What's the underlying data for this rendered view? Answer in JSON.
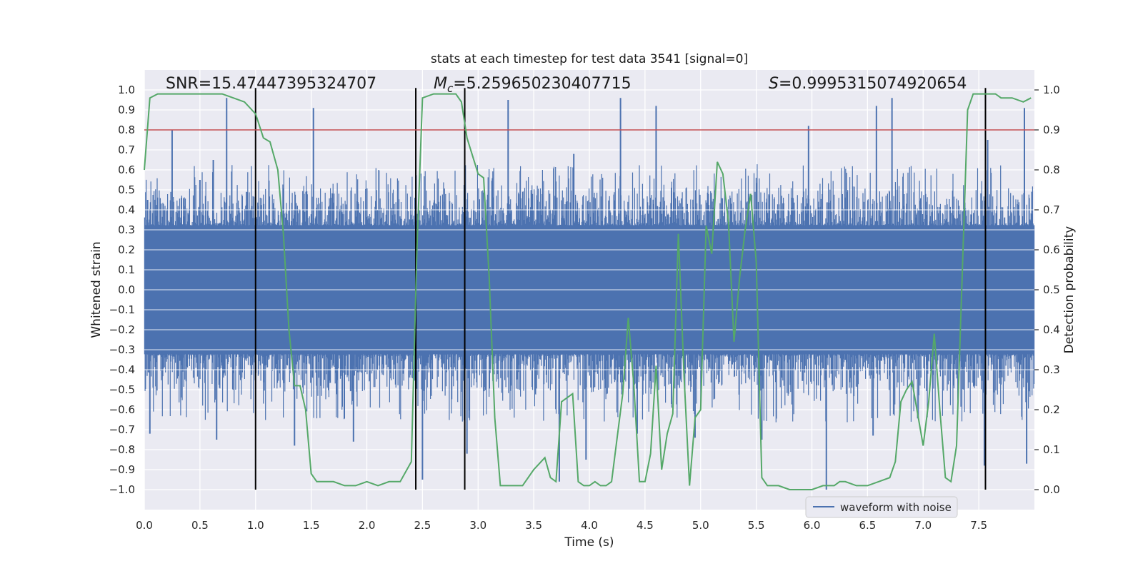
{
  "chart_data": {
    "type": "line",
    "title": "stats at each timestep for test data 3541 [signal=0]",
    "xlabel": "Time (s)",
    "ylabel": "Whitened strain",
    "ylabel_right": "Detection probability",
    "xlim": [
      0.0,
      8.0
    ],
    "ylim": [
      -1.1,
      1.1
    ],
    "ylim_right": [
      -0.05,
      1.05
    ],
    "x_ticks": [
      "0.0",
      "0.5",
      "1.0",
      "1.5",
      "2.0",
      "2.5",
      "3.0",
      "3.5",
      "4.0",
      "4.5",
      "5.0",
      "5.5",
      "6.0",
      "6.5",
      "7.0",
      "7.5"
    ],
    "y_ticks": [
      "1.0",
      "0.9",
      "0.8",
      "0.7",
      "0.6",
      "0.5",
      "0.4",
      "0.3",
      "0.2",
      "0.1",
      "0.0",
      "−0.1",
      "−0.2",
      "−0.3",
      "−0.4",
      "−0.5",
      "−0.6",
      "−0.7",
      "−0.8",
      "−0.9",
      "−1.0"
    ],
    "y_right_ticks": [
      "1.0",
      "0.9",
      "0.8",
      "0.7",
      "0.6",
      "0.5",
      "0.4",
      "0.3",
      "0.2",
      "0.1",
      "0.0"
    ],
    "grid": true,
    "annotations": {
      "snr": "SNR=15.47447395324707",
      "mc_symbol": "M",
      "mc_sub": "c",
      "mc_value": "=5.259650230407715",
      "s_symbol": "S",
      "s_value": "=0.9995315074920654"
    },
    "threshold_right": 0.9,
    "vertical_lines": [
      1.0,
      2.44,
      2.88,
      7.56
    ],
    "legend": {
      "label": "waveform with noise",
      "location": "lower right"
    },
    "series": [
      {
        "name": "waveform with noise",
        "axis": "left",
        "color": "#4c72b0",
        "kind": "noise",
        "typical_amplitude": 0.34,
        "positive_peaks": [
          [
            0.03,
            0.45
          ],
          [
            0.25,
            0.8
          ],
          [
            0.5,
            0.55
          ],
          [
            0.62,
            0.65
          ],
          [
            0.74,
            0.96
          ],
          [
            1.52,
            0.91
          ],
          [
            3.27,
            0.95
          ],
          [
            3.86,
            0.68
          ],
          [
            4.28,
            0.96
          ],
          [
            4.6,
            0.92
          ],
          [
            5.97,
            0.82
          ],
          [
            6.58,
            0.92
          ],
          [
            6.72,
            0.96
          ],
          [
            7.58,
            0.75
          ],
          [
            7.91,
            0.91
          ]
        ],
        "negative_peaks": [
          [
            0.05,
            -0.72
          ],
          [
            0.65,
            -0.75
          ],
          [
            1.35,
            -0.78
          ],
          [
            1.88,
            -0.76
          ],
          [
            2.5,
            -0.95
          ],
          [
            2.9,
            -0.82
          ],
          [
            3.73,
            -0.96
          ],
          [
            3.97,
            -0.85
          ],
          [
            4.43,
            -0.72
          ],
          [
            4.95,
            -0.74
          ],
          [
            5.55,
            -0.75
          ],
          [
            6.13,
            -1.0
          ],
          [
            6.55,
            -0.73
          ],
          [
            7.55,
            -0.88
          ],
          [
            7.93,
            -0.87
          ]
        ]
      },
      {
        "name": "detection probability",
        "axis": "right",
        "color": "#55a868",
        "x": [
          0.0,
          0.05,
          0.12,
          0.2,
          0.3,
          0.4,
          0.5,
          0.6,
          0.7,
          0.8,
          0.9,
          1.0,
          1.07,
          1.13,
          1.2,
          1.25,
          1.3,
          1.35,
          1.4,
          1.45,
          1.5,
          1.55,
          1.6,
          1.7,
          1.8,
          1.9,
          2.0,
          2.1,
          2.2,
          2.3,
          2.4,
          2.45,
          2.5,
          2.6,
          2.7,
          2.8,
          2.85,
          2.9,
          3.0,
          3.05,
          3.1,
          3.15,
          3.2,
          3.3,
          3.4,
          3.5,
          3.6,
          3.65,
          3.7,
          3.75,
          3.8,
          3.85,
          3.9,
          3.95,
          4.0,
          4.05,
          4.1,
          4.15,
          4.2,
          4.3,
          4.35,
          4.4,
          4.45,
          4.5,
          4.55,
          4.6,
          4.65,
          4.7,
          4.75,
          4.8,
          4.85,
          4.9,
          4.95,
          5.0,
          5.05,
          5.1,
          5.15,
          5.2,
          5.25,
          5.3,
          5.35,
          5.4,
          5.45,
          5.5,
          5.55,
          5.6,
          5.7,
          5.8,
          5.9,
          6.0,
          6.1,
          6.2,
          6.25,
          6.3,
          6.4,
          6.5,
          6.6,
          6.7,
          6.75,
          6.8,
          6.85,
          6.9,
          6.95,
          7.0,
          7.05,
          7.1,
          7.15,
          7.2,
          7.25,
          7.3,
          7.35,
          7.4,
          7.45,
          7.5,
          7.55,
          7.6,
          7.65,
          7.7,
          7.8,
          7.9,
          7.97
        ],
        "y": [
          0.8,
          0.98,
          0.99,
          0.99,
          0.99,
          0.99,
          0.99,
          0.99,
          0.99,
          0.98,
          0.97,
          0.94,
          0.88,
          0.87,
          0.8,
          0.64,
          0.4,
          0.26,
          0.26,
          0.2,
          0.04,
          0.02,
          0.02,
          0.02,
          0.01,
          0.01,
          0.02,
          0.01,
          0.02,
          0.02,
          0.07,
          0.6,
          0.98,
          0.99,
          0.99,
          0.99,
          0.97,
          0.88,
          0.79,
          0.78,
          0.53,
          0.18,
          0.01,
          0.01,
          0.01,
          0.05,
          0.08,
          0.03,
          0.02,
          0.22,
          0.23,
          0.24,
          0.02,
          0.01,
          0.01,
          0.02,
          0.01,
          0.01,
          0.02,
          0.24,
          0.43,
          0.26,
          0.02,
          0.02,
          0.09,
          0.31,
          0.05,
          0.14,
          0.19,
          0.64,
          0.29,
          0.01,
          0.18,
          0.2,
          0.66,
          0.59,
          0.82,
          0.79,
          0.67,
          0.37,
          0.53,
          0.65,
          0.74,
          0.57,
          0.03,
          0.01,
          0.01,
          0.0,
          0.0,
          0.0,
          0.01,
          0.01,
          0.02,
          0.02,
          0.01,
          0.01,
          0.02,
          0.03,
          0.07,
          0.22,
          0.25,
          0.27,
          0.19,
          0.11,
          0.22,
          0.39,
          0.2,
          0.03,
          0.02,
          0.11,
          0.53,
          0.95,
          0.99,
          0.99,
          0.99,
          0.99,
          0.99,
          0.98,
          0.98,
          0.97,
          0.98
        ]
      }
    ]
  }
}
